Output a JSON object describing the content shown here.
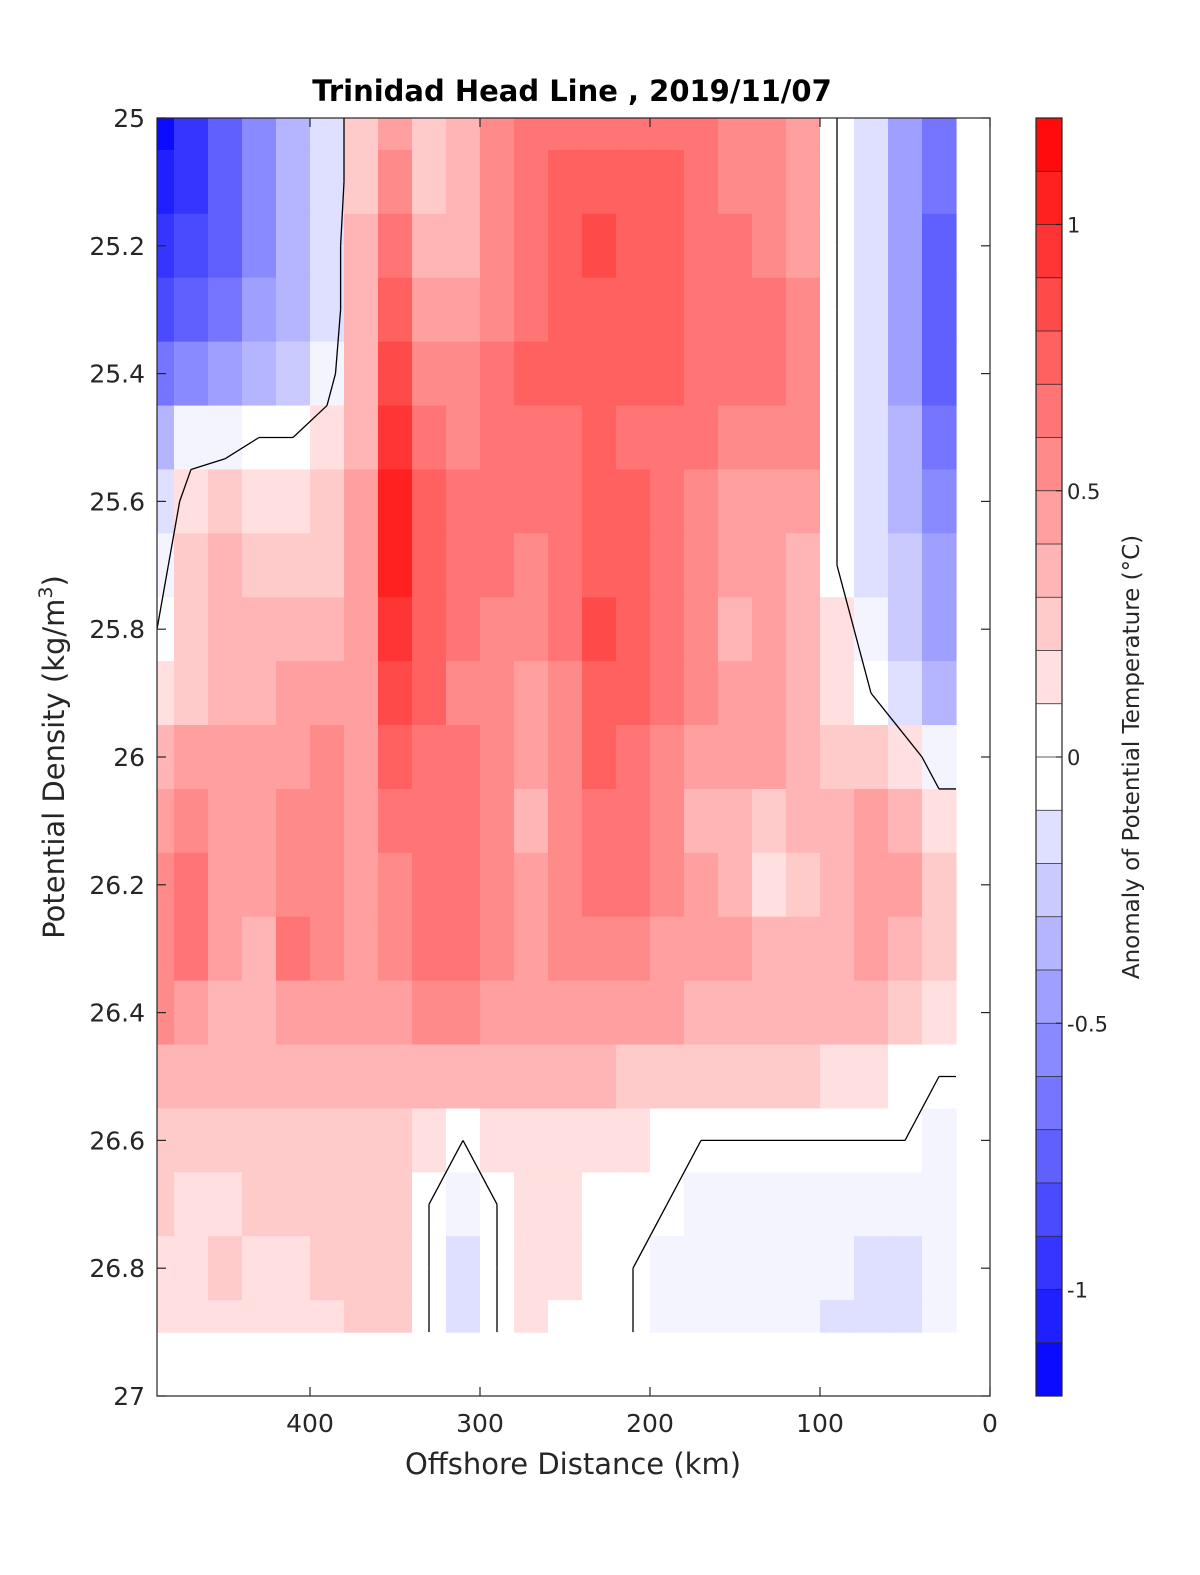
{
  "chart_data": {
    "type": "heatmap",
    "title": "Trinidad Head Line , 2019/11/07",
    "xlabel": "Offshore Distance (km)",
    "ylabel_main": "Potential Density (kg/m",
    "ylabel_sup": "3",
    "ylabel_tail": ")",
    "colorbar_label": "Anomaly of Potential Temperature (°C)",
    "x_ticks": [
      "400",
      "300",
      "200",
      "100",
      "0"
    ],
    "x_tick_values": [
      400,
      300,
      200,
      100,
      0
    ],
    "xlim": [
      490,
      0
    ],
    "x_reversed": true,
    "y_ticks": [
      "25",
      "25.2",
      "25.4",
      "25.6",
      "25.8",
      "26",
      "26.2",
      "26.4",
      "26.6",
      "26.8",
      "27"
    ],
    "y_tick_values": [
      25,
      25.2,
      25.4,
      25.6,
      25.8,
      26,
      26.2,
      26.4,
      26.6,
      26.8,
      27
    ],
    "ylim": [
      25,
      27
    ],
    "y_reversed": true,
    "colorbar_ticks": [
      "-1",
      "-0.5",
      "0",
      "0.5",
      "1"
    ],
    "colorbar_tick_values": [
      -1,
      -0.5,
      0,
      0.5,
      1
    ],
    "clim": [
      -1.2,
      1.2
    ],
    "levels": [
      -1.2,
      -1.1,
      -1.0,
      -0.9,
      -0.8,
      -0.7,
      -0.6,
      -0.5,
      -0.4,
      -0.3,
      -0.2,
      -0.1,
      0,
      0.1,
      0.2,
      0.3,
      0.4,
      0.5,
      0.6,
      0.7,
      0.8,
      0.9,
      1.0,
      1.1,
      1.2
    ],
    "colormap": "blue-white-red",
    "zero_contour": "black",
    "data_extent_x": [
      490,
      20
    ],
    "data_extent_y": [
      25,
      26.9
    ],
    "x_grid": [
      490,
      470,
      450,
      430,
      410,
      390,
      370,
      350,
      330,
      310,
      290,
      270,
      250,
      230,
      210,
      190,
      170,
      150,
      130,
      110,
      90,
      70,
      50,
      30,
      20
    ],
    "y_grid": [
      25.0,
      25.1,
      25.2,
      25.3,
      25.4,
      25.5,
      25.6,
      25.7,
      25.8,
      25.9,
      26.0,
      26.1,
      26.2,
      26.3,
      26.4,
      26.5,
      26.6,
      26.7,
      26.8,
      26.9
    ],
    "anomaly": [
      [
        -1.2,
        -1.0,
        -0.8,
        -0.6,
        -0.4,
        -0.2,
        0.2,
        0.4,
        0.2,
        0.3,
        0.5,
        0.6,
        0.6,
        0.6,
        0.6,
        0.6,
        0.6,
        0.5,
        0.5,
        0.4,
        0.0,
        -0.2,
        -0.5,
        -0.7,
        -0.7
      ],
      [
        -1.1,
        -1.0,
        -0.8,
        -0.6,
        -0.4,
        -0.2,
        0.2,
        0.5,
        0.2,
        0.3,
        0.5,
        0.6,
        0.7,
        0.7,
        0.7,
        0.7,
        0.6,
        0.5,
        0.5,
        0.4,
        0.0,
        -0.2,
        -0.5,
        -0.7,
        -0.7
      ],
      [
        -1.0,
        -0.9,
        -0.8,
        -0.6,
        -0.4,
        -0.2,
        0.3,
        0.6,
        0.3,
        0.3,
        0.5,
        0.6,
        0.7,
        0.8,
        0.7,
        0.7,
        0.6,
        0.6,
        0.5,
        0.4,
        0.0,
        -0.2,
        -0.5,
        -0.8,
        -0.8
      ],
      [
        -0.9,
        -0.8,
        -0.7,
        -0.5,
        -0.4,
        -0.2,
        0.3,
        0.7,
        0.4,
        0.4,
        0.5,
        0.6,
        0.7,
        0.7,
        0.7,
        0.7,
        0.6,
        0.6,
        0.6,
        0.5,
        0.0,
        -0.2,
        -0.5,
        -0.8,
        -0.8
      ],
      [
        -0.7,
        -0.6,
        -0.5,
        -0.4,
        -0.3,
        -0.1,
        0.3,
        0.8,
        0.5,
        0.5,
        0.6,
        0.7,
        0.7,
        0.7,
        0.7,
        0.7,
        0.6,
        0.6,
        0.6,
        0.5,
        0.0,
        -0.2,
        -0.5,
        -0.8,
        -0.8
      ],
      [
        -0.4,
        -0.1,
        -0.1,
        0.0,
        0.0,
        0.1,
        0.3,
        0.9,
        0.6,
        0.5,
        0.6,
        0.6,
        0.6,
        0.7,
        0.6,
        0.6,
        0.6,
        0.5,
        0.5,
        0.5,
        0.0,
        -0.2,
        -0.4,
        -0.7,
        -0.7
      ],
      [
        -0.2,
        0.1,
        0.2,
        0.1,
        0.1,
        0.2,
        0.4,
        1.0,
        0.7,
        0.6,
        0.6,
        0.6,
        0.6,
        0.7,
        0.7,
        0.6,
        0.5,
        0.4,
        0.4,
        0.4,
        0.0,
        -0.2,
        -0.4,
        -0.6,
        -0.6
      ],
      [
        -0.1,
        0.2,
        0.3,
        0.2,
        0.2,
        0.2,
        0.4,
        1.0,
        0.7,
        0.6,
        0.6,
        0.5,
        0.6,
        0.7,
        0.7,
        0.6,
        0.5,
        0.4,
        0.4,
        0.3,
        0.0,
        -0.2,
        -0.3,
        -0.5,
        -0.5
      ],
      [
        0.0,
        0.2,
        0.3,
        0.3,
        0.3,
        0.3,
        0.4,
        0.9,
        0.7,
        0.6,
        0.5,
        0.5,
        0.6,
        0.8,
        0.7,
        0.6,
        0.5,
        0.3,
        0.4,
        0.3,
        0.1,
        -0.1,
        -0.3,
        -0.5,
        -0.5
      ],
      [
        0.1,
        0.2,
        0.3,
        0.3,
        0.4,
        0.4,
        0.4,
        0.8,
        0.7,
        0.5,
        0.5,
        0.4,
        0.5,
        0.7,
        0.7,
        0.6,
        0.5,
        0.4,
        0.4,
        0.3,
        0.1,
        0.0,
        -0.2,
        -0.4,
        -0.4
      ],
      [
        0.3,
        0.4,
        0.4,
        0.4,
        0.4,
        0.5,
        0.4,
        0.7,
        0.6,
        0.6,
        0.5,
        0.4,
        0.5,
        0.7,
        0.6,
        0.5,
        0.4,
        0.4,
        0.4,
        0.3,
        0.2,
        0.2,
        0.1,
        -0.1,
        -0.1
      ],
      [
        0.4,
        0.5,
        0.4,
        0.4,
        0.5,
        0.5,
        0.4,
        0.6,
        0.6,
        0.6,
        0.5,
        0.3,
        0.5,
        0.6,
        0.6,
        0.5,
        0.3,
        0.3,
        0.2,
        0.3,
        0.3,
        0.4,
        0.3,
        0.1,
        0.1
      ],
      [
        0.5,
        0.6,
        0.4,
        0.4,
        0.5,
        0.5,
        0.4,
        0.5,
        0.6,
        0.6,
        0.5,
        0.4,
        0.5,
        0.6,
        0.6,
        0.5,
        0.4,
        0.3,
        0.1,
        0.2,
        0.3,
        0.4,
        0.4,
        0.2,
        0.2
      ],
      [
        0.5,
        0.6,
        0.4,
        0.3,
        0.6,
        0.5,
        0.4,
        0.5,
        0.6,
        0.6,
        0.5,
        0.4,
        0.5,
        0.5,
        0.5,
        0.4,
        0.4,
        0.4,
        0.3,
        0.3,
        0.3,
        0.4,
        0.3,
        0.2,
        0.2
      ],
      [
        0.5,
        0.4,
        0.3,
        0.3,
        0.4,
        0.4,
        0.4,
        0.4,
        0.5,
        0.5,
        0.4,
        0.4,
        0.4,
        0.4,
        0.4,
        0.4,
        0.3,
        0.3,
        0.3,
        0.3,
        0.3,
        0.3,
        0.2,
        0.1,
        0.1
      ],
      [
        0.3,
        0.3,
        0.3,
        0.3,
        0.3,
        0.3,
        0.3,
        0.3,
        0.3,
        0.3,
        0.3,
        0.3,
        0.3,
        0.3,
        0.2,
        0.2,
        0.2,
        0.2,
        0.2,
        0.2,
        0.1,
        0.1,
        0.0,
        0.0,
        0.0
      ],
      [
        0.2,
        0.2,
        0.2,
        0.2,
        0.2,
        0.2,
        0.2,
        0.2,
        0.1,
        -0.0,
        0.1,
        0.1,
        0.1,
        0.1,
        0.1,
        0.0,
        0.0,
        0.0,
        -0.0,
        -0.0,
        -0.0,
        -0.0,
        -0.0,
        -0.1,
        -0.1
      ],
      [
        0.2,
        0.1,
        0.1,
        0.2,
        0.2,
        0.2,
        0.2,
        0.2,
        0.0,
        -0.1,
        0.0,
        0.1,
        0.1,
        0.0,
        0.0,
        -0.0,
        -0.1,
        -0.1,
        -0.1,
        -0.1,
        -0.1,
        -0.1,
        -0.1,
        -0.1,
        -0.1
      ],
      [
        0.1,
        0.1,
        0.2,
        0.1,
        0.1,
        0.2,
        0.2,
        0.2,
        -0.0,
        -0.2,
        -0.0,
        0.1,
        0.1,
        0.0,
        -0.0,
        -0.1,
        -0.1,
        -0.1,
        -0.1,
        -0.1,
        -0.1,
        -0.2,
        -0.2,
        -0.1,
        -0.1
      ],
      [
        0.1,
        0.1,
        0.1,
        0.1,
        0.1,
        0.1,
        0.2,
        0.2,
        -0.0,
        -0.2,
        -0.0,
        0.1,
        0.0,
        -0.0,
        -0.0,
        -0.1,
        -0.1,
        -0.1,
        -0.1,
        -0.1,
        -0.2,
        -0.2,
        -0.2,
        -0.1,
        -0.1
      ]
    ]
  }
}
